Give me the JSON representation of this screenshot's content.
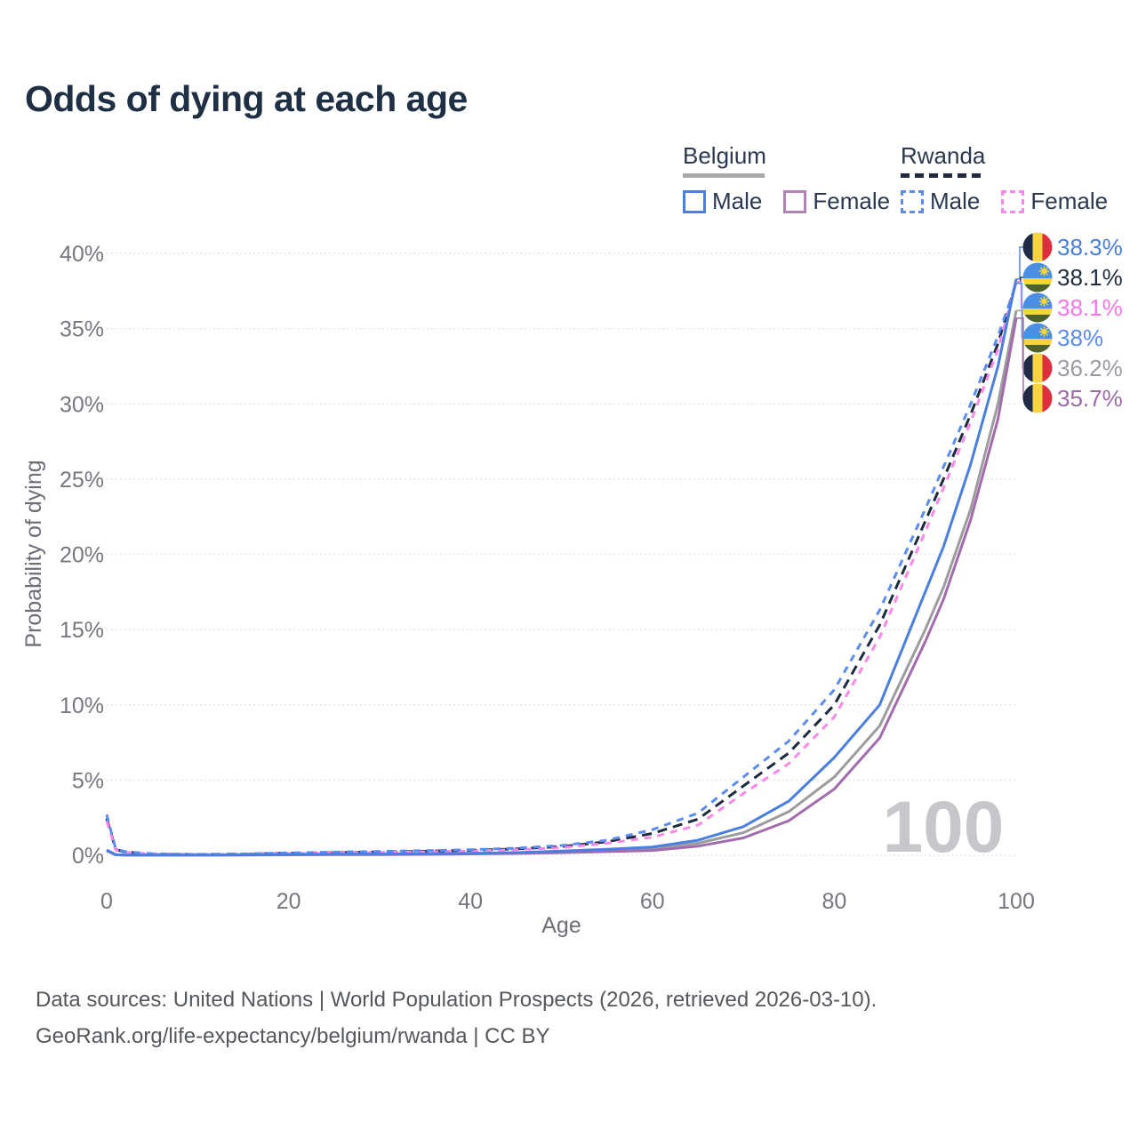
{
  "title": "Odds of dying at each age",
  "legend": {
    "groups": [
      {
        "label": "Belgium",
        "line_style": "solid",
        "line_color": "#a8a8a8",
        "items": [
          {
            "label": "Male",
            "color": "#4a7fe0",
            "dashed": false
          },
          {
            "label": "Female",
            "color": "#b383b8",
            "dashed": false
          }
        ]
      },
      {
        "label": "Rwanda",
        "line_style": "dashed",
        "line_color": "#1e2b3f",
        "items": [
          {
            "label": "Male",
            "color": "#5b8cf0",
            "dashed": true
          },
          {
            "label": "Female",
            "color": "#fb87ea",
            "dashed": true
          }
        ]
      }
    ]
  },
  "chart_data": {
    "type": "line",
    "title": "Odds of dying at each age",
    "xlabel": "Age",
    "ylabel": "Probability of dying",
    "xlim": [
      0,
      100
    ],
    "ylim": [
      0,
      40
    ],
    "x_ticks": [
      {
        "v": 0,
        "label": "0"
      },
      {
        "v": 20,
        "label": "20"
      },
      {
        "v": 40,
        "label": "40"
      },
      {
        "v": 60,
        "label": "60"
      },
      {
        "v": 80,
        "label": "80"
      },
      {
        "v": 100,
        "label": "100"
      }
    ],
    "y_ticks": [
      {
        "v": 0,
        "label": "0%"
      },
      {
        "v": 5,
        "label": "5%"
      },
      {
        "v": 10,
        "label": "10%"
      },
      {
        "v": 15,
        "label": "15%"
      },
      {
        "v": 20,
        "label": "20%"
      },
      {
        "v": 25,
        "label": "25%"
      },
      {
        "v": 30,
        "label": "30%"
      },
      {
        "v": 35,
        "label": "35%"
      },
      {
        "v": 40,
        "label": "40%"
      }
    ],
    "grid": "horizontal-dotted",
    "legend_position": "top-right",
    "watermark": "100",
    "ages": [
      0,
      1,
      2,
      5,
      10,
      15,
      20,
      25,
      30,
      35,
      40,
      45,
      50,
      55,
      60,
      65,
      70,
      75,
      80,
      85,
      90,
      92,
      95,
      98,
      100
    ],
    "series": [
      {
        "name": "Belgium Male",
        "country": "Belgium",
        "sex": "male",
        "flag": "belgium",
        "color": "#4a7fe0",
        "dash": null,
        "end_label": "38.3%",
        "label_color": "#4a7de0",
        "values": [
          0.35,
          0.04,
          0.02,
          0.012,
          0.012,
          0.03,
          0.06,
          0.07,
          0.08,
          0.1,
          0.13,
          0.18,
          0.28,
          0.4,
          0.55,
          1.0,
          1.9,
          3.6,
          6.5,
          10.0,
          17.5,
          20.5,
          26.0,
          32.5,
          38.3
        ]
      },
      {
        "name": "Rwanda",
        "country": "Rwanda",
        "sex": "all",
        "flag": "rwanda",
        "color": "#1e2b3f",
        "dash": [
          11,
          7
        ],
        "end_label": "38.1%",
        "label_color": "#1f2c3f",
        "values": [
          2.45,
          0.38,
          0.22,
          0.09,
          0.055,
          0.08,
          0.14,
          0.18,
          0.22,
          0.27,
          0.33,
          0.42,
          0.58,
          0.9,
          1.45,
          2.4,
          4.6,
          6.8,
          10.0,
          15.3,
          22.2,
          25.0,
          29.3,
          34.0,
          38.1
        ]
      },
      {
        "name": "Rwanda Female",
        "country": "Rwanda",
        "sex": "female",
        "flag": "rwanda",
        "color": "#fb87ea",
        "dash": [
          8,
          7
        ],
        "end_label": "38.1%",
        "label_color": "#f775e8",
        "values": [
          2.3,
          0.35,
          0.2,
          0.08,
          0.05,
          0.07,
          0.12,
          0.16,
          0.19,
          0.23,
          0.28,
          0.37,
          0.5,
          0.8,
          1.2,
          2.0,
          4.1,
          6.1,
          9.2,
          14.5,
          21.5,
          24.4,
          28.8,
          33.6,
          38.1
        ]
      },
      {
        "name": "Rwanda Male",
        "country": "Rwanda",
        "sex": "male",
        "flag": "rwanda",
        "color": "#5b8cf0",
        "dash": [
          8,
          7
        ],
        "end_label": "38%",
        "label_color": "#5b8cf0",
        "values": [
          2.7,
          0.42,
          0.25,
          0.1,
          0.06,
          0.09,
          0.16,
          0.21,
          0.26,
          0.31,
          0.37,
          0.47,
          0.65,
          1.0,
          1.7,
          2.8,
          5.2,
          7.6,
          11.0,
          16.3,
          23.0,
          25.8,
          30.0,
          34.5,
          38.0
        ]
      },
      {
        "name": "Belgium",
        "country": "Belgium",
        "sex": "all",
        "flag": "belgium",
        "color": "#9c9c9c",
        "dash": null,
        "end_label": "36.2%",
        "label_color": "#9b9ba3",
        "values": [
          0.32,
          0.035,
          0.018,
          0.01,
          0.01,
          0.025,
          0.05,
          0.06,
          0.07,
          0.08,
          0.11,
          0.15,
          0.22,
          0.32,
          0.45,
          0.8,
          1.5,
          2.9,
          5.2,
          8.6,
          15.0,
          17.8,
          23.0,
          30.0,
          36.2
        ]
      },
      {
        "name": "Belgium Female",
        "country": "Belgium",
        "sex": "female",
        "flag": "belgium",
        "color": "#a26bae",
        "dash": null,
        "end_label": "35.7%",
        "label_color": "#9c6aa8",
        "values": [
          0.3,
          0.03,
          0.015,
          0.009,
          0.009,
          0.02,
          0.03,
          0.04,
          0.05,
          0.06,
          0.09,
          0.12,
          0.17,
          0.24,
          0.32,
          0.6,
          1.15,
          2.3,
          4.4,
          7.8,
          14.2,
          17.0,
          22.3,
          29.0,
          35.7
        ]
      }
    ]
  },
  "footer": {
    "line1": "Data sources: United Nations | World Population Prospects (2026, retrieved 2026-03-10).",
    "line2": "GeoRank.org/life-expectancy/belgium/rwanda | CC BY"
  }
}
